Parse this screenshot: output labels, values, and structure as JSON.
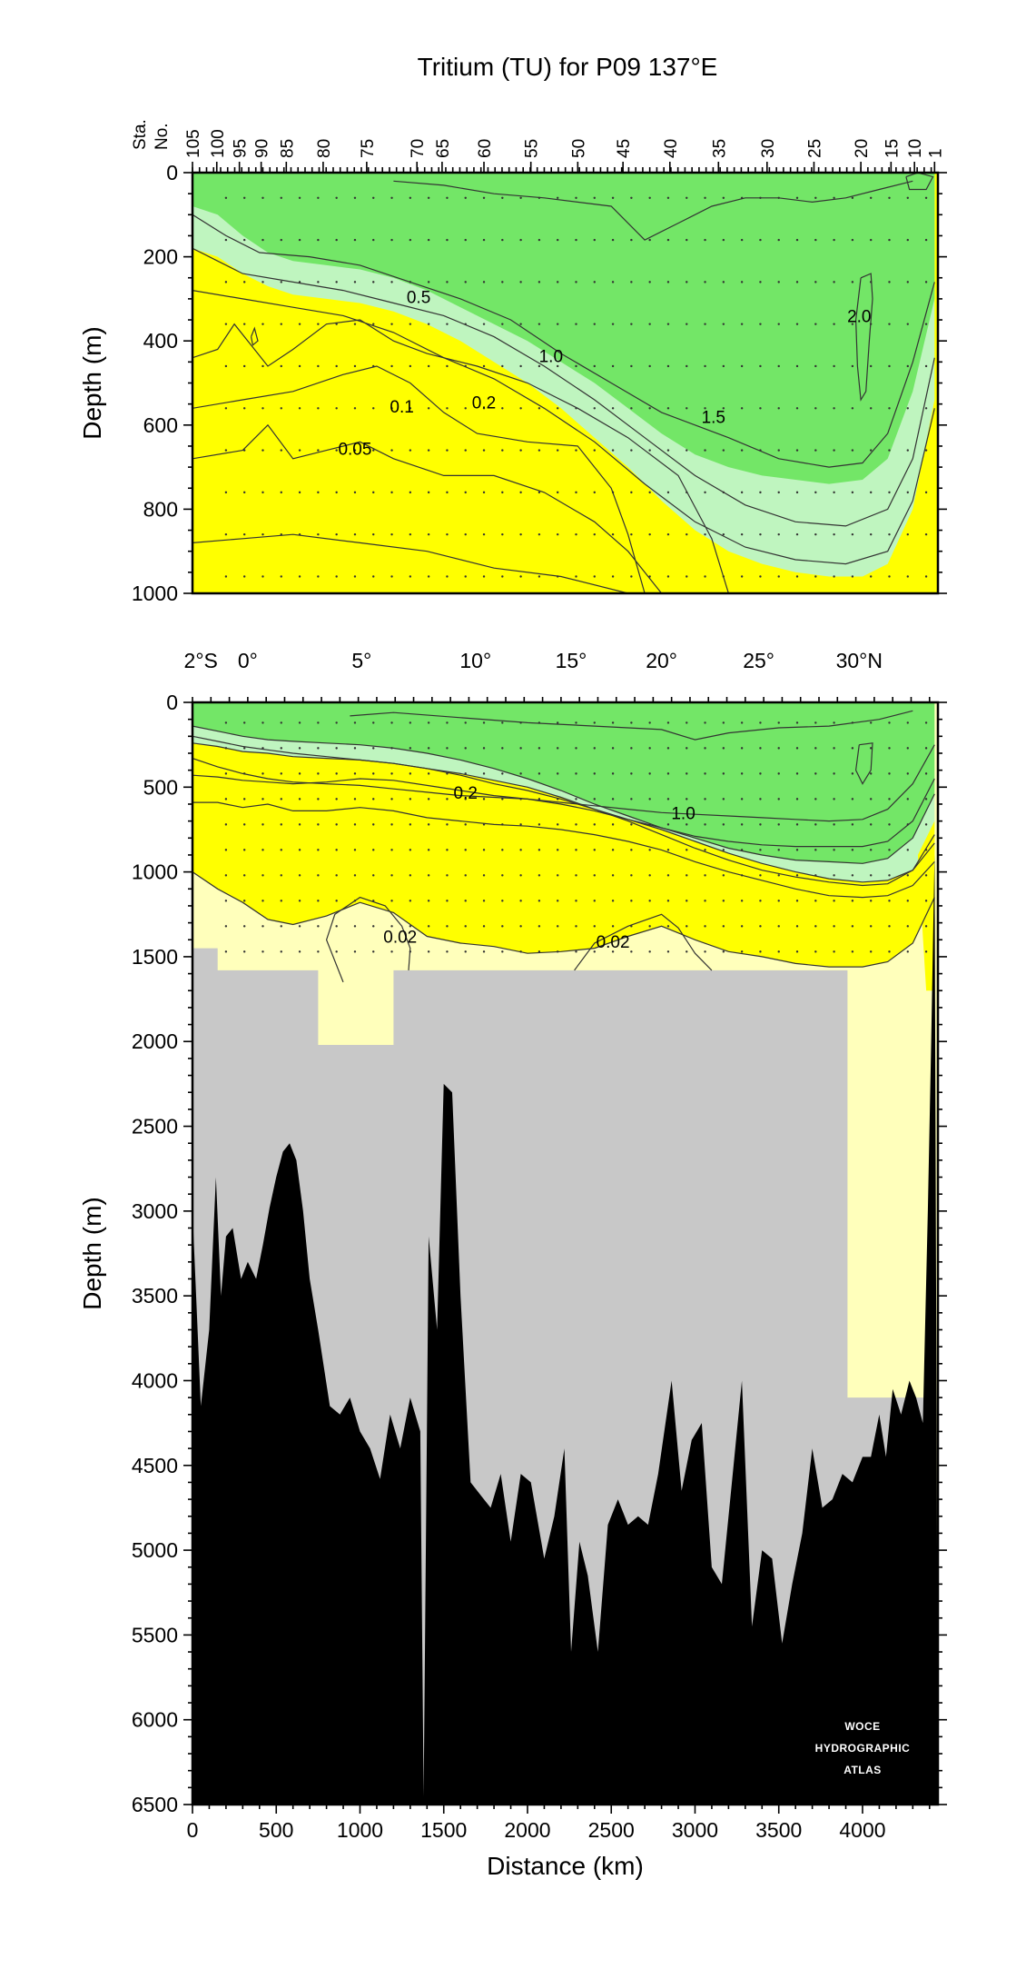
{
  "chart_data": [
    {
      "type": "contour_section",
      "title": "Tritium (TU) for P09 137°E",
      "ylabel": "Depth (m)",
      "ylim": [
        0,
        1000
      ],
      "yticks": [
        0,
        200,
        400,
        600,
        800,
        1000
      ],
      "xlim": [
        0,
        4450
      ],
      "station_axis_label": "Sta. No.",
      "stations": [
        {
          "label": "105",
          "km": 0
        },
        {
          "label": "100",
          "km": 145
        },
        {
          "label": "95",
          "km": 280
        },
        {
          "label": "90",
          "km": 410
        },
        {
          "label": "85",
          "km": 560
        },
        {
          "label": "80",
          "km": 780
        },
        {
          "label": "75",
          "km": 1040
        },
        {
          "label": "70",
          "km": 1340
        },
        {
          "label": "65",
          "km": 1490
        },
        {
          "label": "60",
          "km": 1740
        },
        {
          "label": "55",
          "km": 2020
        },
        {
          "label": "50",
          "km": 2300
        },
        {
          "label": "45",
          "km": 2570
        },
        {
          "label": "40",
          "km": 2850
        },
        {
          "label": "35",
          "km": 3140
        },
        {
          "label": "30",
          "km": 3430
        },
        {
          "label": "25",
          "km": 3710
        },
        {
          "label": "20",
          "km": 3990
        },
        {
          "label": "15",
          "km": 4170
        },
        {
          "label": "10",
          "km": 4310
        },
        {
          "label": "1",
          "km": 4430
        }
      ],
      "contour_labels": [
        {
          "text": "0.5",
          "km": 1350,
          "depth": 295
        },
        {
          "text": "1.0",
          "km": 2140,
          "depth": 435
        },
        {
          "text": "1.5",
          "km": 3110,
          "depth": 580
        },
        {
          "text": "2.0",
          "km": 3980,
          "depth": 340
        },
        {
          "text": "0.1",
          "km": 1250,
          "depth": 555
        },
        {
          "text": "0.2",
          "km": 1740,
          "depth": 545
        },
        {
          "text": "0.05",
          "km": 970,
          "depth": 655
        }
      ]
    },
    {
      "type": "contour_section",
      "ylabel": "Depth (m)",
      "xlabel": "Distance (km)",
      "ylim": [
        0,
        6500
      ],
      "yticks": [
        0,
        500,
        1000,
        1500,
        2000,
        2500,
        3000,
        3500,
        4000,
        4500,
        5000,
        5500,
        6000,
        6500
      ],
      "xlim": [
        0,
        4450
      ],
      "xticks": [
        0,
        500,
        1000,
        1500,
        2000,
        2500,
        3000,
        3500,
        4000
      ],
      "latitudes": [
        {
          "label": "2°S",
          "km": 50
        },
        {
          "label": "0°",
          "km": 330
        },
        {
          "label": "5°",
          "km": 1010
        },
        {
          "label": "10°",
          "km": 1690
        },
        {
          "label": "15°",
          "km": 2260
        },
        {
          "label": "20°",
          "km": 2800
        },
        {
          "label": "25°",
          "km": 3380
        },
        {
          "label": "30°N",
          "km": 3980
        }
      ],
      "contour_labels": [
        {
          "text": "0.2",
          "km": 1630,
          "depth": 530
        },
        {
          "text": "1.0",
          "km": 2930,
          "depth": 650
        },
        {
          "text": "0.02",
          "km": 1240,
          "depth": 1380
        },
        {
          "text": "0.02",
          "km": 2510,
          "depth": 1410
        }
      ],
      "no_data_region": "gray",
      "bathymetry": "black",
      "watermark": [
        "WOCE",
        "HYDROGRAPHIC",
        "ATLAS"
      ]
    }
  ]
}
